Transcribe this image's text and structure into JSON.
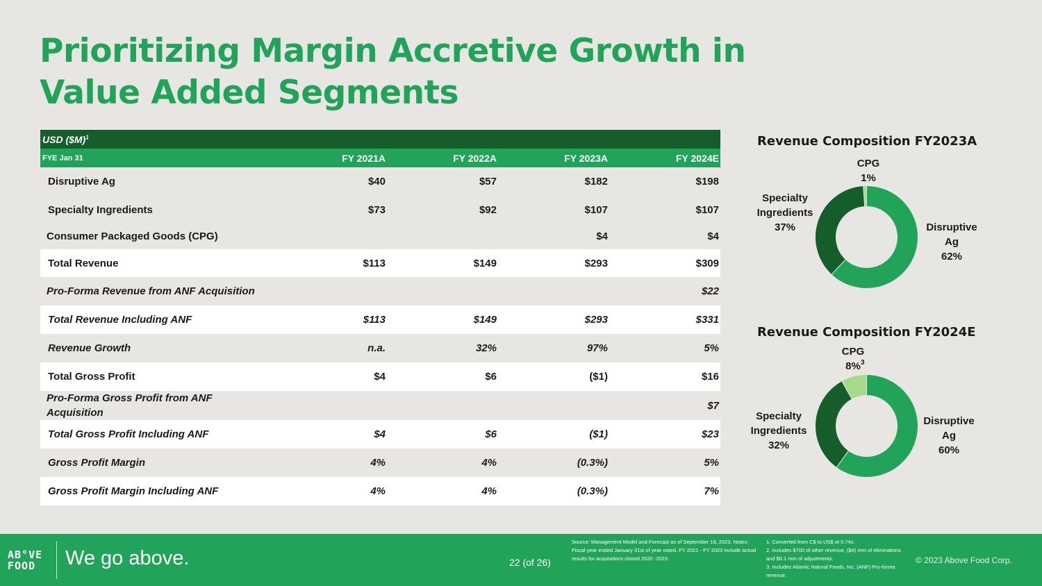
{
  "title": "Prioritizing Margin Accretive Growth in Value Added Segments",
  "table": {
    "currency_label": "USD ($M)",
    "currency_sup": "1",
    "fye_label": "FYE Jan 31",
    "columns": [
      "FY 2021A",
      "FY 2022A",
      "FY 2023A",
      "FY 2024E"
    ],
    "rows": [
      {
        "label": "Disruptive Ag",
        "values": [
          "$40",
          "$57",
          "$182",
          "$198"
        ]
      },
      {
        "label": "Specialty Ingredients",
        "values": [
          "$73",
          "$92",
          "$107",
          "$107"
        ]
      },
      {
        "label": "Consumer Packaged Goods (CPG)",
        "values": [
          "",
          "",
          "$4",
          "$4"
        ]
      },
      {
        "label": "Total Revenue",
        "values": [
          "$113",
          "$149",
          "$293",
          "$309"
        ]
      },
      {
        "label": "Pro-Forma Revenue from ANF Acquisition",
        "values": [
          "",
          "",
          "",
          "$22"
        ]
      },
      {
        "label": "Total Revenue Including ANF",
        "values": [
          "$113",
          "$149",
          "$293",
          "$331"
        ]
      },
      {
        "label": "Revenue Growth",
        "values": [
          "n.a.",
          "32%",
          "97%",
          "5%"
        ]
      },
      {
        "label": "Total Gross Profit",
        "values": [
          "$4",
          "$6",
          "($1)",
          "$16"
        ]
      },
      {
        "label": "Pro-Forma Gross Profit from ANF Acquisition",
        "values": [
          "",
          "",
          "",
          "$7"
        ]
      },
      {
        "label": "Total Gross Profit Including ANF",
        "values": [
          "$4",
          "$6",
          "($1)",
          "$23"
        ]
      },
      {
        "label": "Gross Profit Margin",
        "values": [
          "4%",
          "4%",
          "(0.3%)",
          "5%"
        ]
      },
      {
        "label": "Gross Profit Margin Including ANF",
        "values": [
          "4%",
          "4%",
          "(0.3%)",
          "7%"
        ]
      }
    ]
  },
  "chart_data": [
    {
      "type": "pie",
      "title": "Revenue Composition FY2023A",
      "categories": [
        "Disruptive Ag",
        "Specialty Ingredients",
        "CPG"
      ],
      "values": [
        62,
        37,
        1
      ],
      "labels": {
        "cpg": "CPG",
        "cpg_pct": "1%",
        "spec1": "Specialty",
        "spec2": "Ingredients",
        "spec_pct": "37%",
        "dis1": "Disruptive",
        "dis2": "Ag",
        "dis_pct": "62%"
      },
      "colors": [
        "#22a35a",
        "#155e2b",
        "#a8d88a"
      ]
    },
    {
      "type": "pie",
      "title": "Revenue Composition FY2024E",
      "categories": [
        "Disruptive Ag",
        "Specialty Ingredients",
        "CPG"
      ],
      "values": [
        60,
        32,
        8
      ],
      "labels": {
        "cpg": "CPG",
        "cpg_pct": "8%",
        "cpg_sup": "3",
        "spec1": "Specialty",
        "spec2": "Ingredients",
        "spec_pct": "32%",
        "dis1": "Disruptive",
        "dis2": "Ag",
        "dis_pct": "60%"
      },
      "colors": [
        "#22a35a",
        "#155e2b",
        "#a8d88a"
      ]
    }
  ],
  "footer": {
    "logo_line1": "AB°VE",
    "logo_line2": "FOOD",
    "tagline": "We go above.",
    "page": "22 (of 26)",
    "source": "Source: Management Model and Forecast as of September 19, 2023. Notes: Fiscal year ended January 31st of year noted. FY 2021 - FY 2023 include actual results for acquisitions closed 2020 -2023.",
    "notes": [
      "1. Converted from C$ to US$ at 0.74x.",
      "2. Includes $700 of other revenue, ($4) mm of eliminations and $0.1 mm of adjustments.",
      "3. Includes Atlantic Natural Foods, Inc. (ANF) Pro-forma revenue."
    ],
    "copyright": "© 2023 Above Food Corp."
  }
}
